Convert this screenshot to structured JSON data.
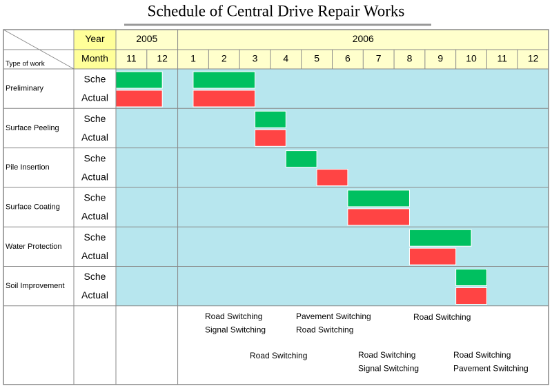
{
  "title": "Schedule of Central Drive Repair Works",
  "header": {
    "type_label": "Type of work",
    "year_label": "Year",
    "month_label": "Month",
    "years": [
      {
        "label": "2005",
        "months": [
          "11",
          "12"
        ]
      },
      {
        "label": "2006",
        "months": [
          "1",
          "2",
          "3",
          "4",
          "5",
          "6",
          "7",
          "8",
          "9",
          "10",
          "11",
          "12"
        ]
      }
    ]
  },
  "row_labels": [
    "Sche",
    "Actual"
  ],
  "tasks": [
    {
      "name": "Preliminary",
      "bars": [
        [
          [
            0,
            1.5
          ],
          [
            2.5,
            4.5
          ]
        ],
        [
          [
            0,
            1.5
          ],
          [
            2.5,
            4.5
          ]
        ]
      ]
    },
    {
      "name": "Surface Peeling",
      "bars": [
        [
          [
            4.5,
            5.5
          ]
        ],
        [
          [
            4.5,
            5.5
          ]
        ]
      ]
    },
    {
      "name": "Pile Insertion",
      "bars": [
        [
          [
            5.5,
            6.5
          ]
        ],
        [
          [
            6.5,
            7.5
          ]
        ]
      ]
    },
    {
      "name": "Surface Coating",
      "bars": [
        [
          [
            7.5,
            9.5
          ]
        ],
        [
          [
            7.5,
            9.5
          ]
        ]
      ]
    },
    {
      "name": "Water Protection",
      "bars": [
        [
          [
            9.5,
            11.5
          ]
        ],
        [
          [
            9.5,
            11
          ]
        ]
      ]
    },
    {
      "name": "Soil Improvement",
      "bars": [
        [
          [
            11,
            12
          ]
        ],
        [
          [
            11,
            12
          ]
        ]
      ]
    }
  ],
  "notes": [
    [
      "Road Switching",
      "Signal Switching"
    ],
    [
      "Pavement Switching",
      "Road Switching"
    ],
    [
      "Road Switching"
    ],
    [
      "Road Switching"
    ],
    [
      "Road Switching",
      "Signal Switching"
    ],
    [
      "Road Switching",
      "Pavement Switching"
    ]
  ]
}
